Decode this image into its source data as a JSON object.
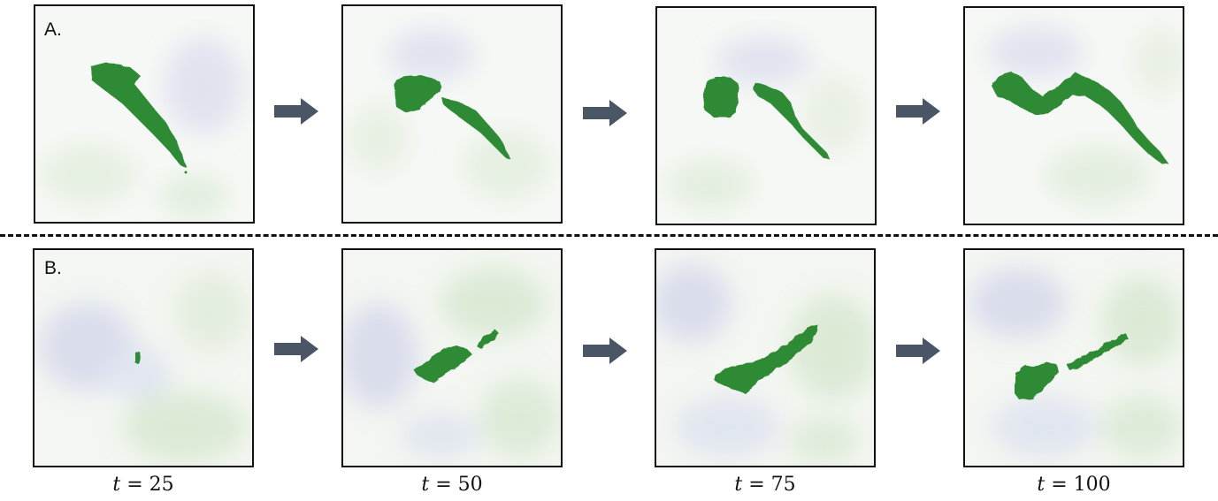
{
  "row_a": {
    "label": "A.",
    "panels": [
      {
        "blob": "single-elongated-region"
      },
      {
        "blob": "region-with-separating-tail"
      },
      {
        "blob": "two-separate-regions"
      },
      {
        "blob": "long-winding-region"
      }
    ]
  },
  "row_b": {
    "label": "B.",
    "panels": [
      {
        "blob": "small-speck"
      },
      {
        "blob": "small-diagonal-region"
      },
      {
        "blob": "medium-diagonal-region"
      },
      {
        "blob": "two-aligned-regions"
      }
    ]
  },
  "arrow_icon": "right-arrow-icon",
  "time_labels": [
    {
      "var": "t",
      "rest": " = 25"
    },
    {
      "var": "t",
      "rest": " = 50"
    },
    {
      "var": "t",
      "rest": " = 75"
    },
    {
      "var": "t",
      "rest": " = 100"
    }
  ],
  "colors": {
    "blob": "#2e8a36",
    "blob_dark": "#1f6b27",
    "arrow": "#4a5566",
    "background_light": "#f4f6f4",
    "background_green": "#d6e6cf",
    "background_blue": "#d5d8ea",
    "border": "#111111"
  }
}
